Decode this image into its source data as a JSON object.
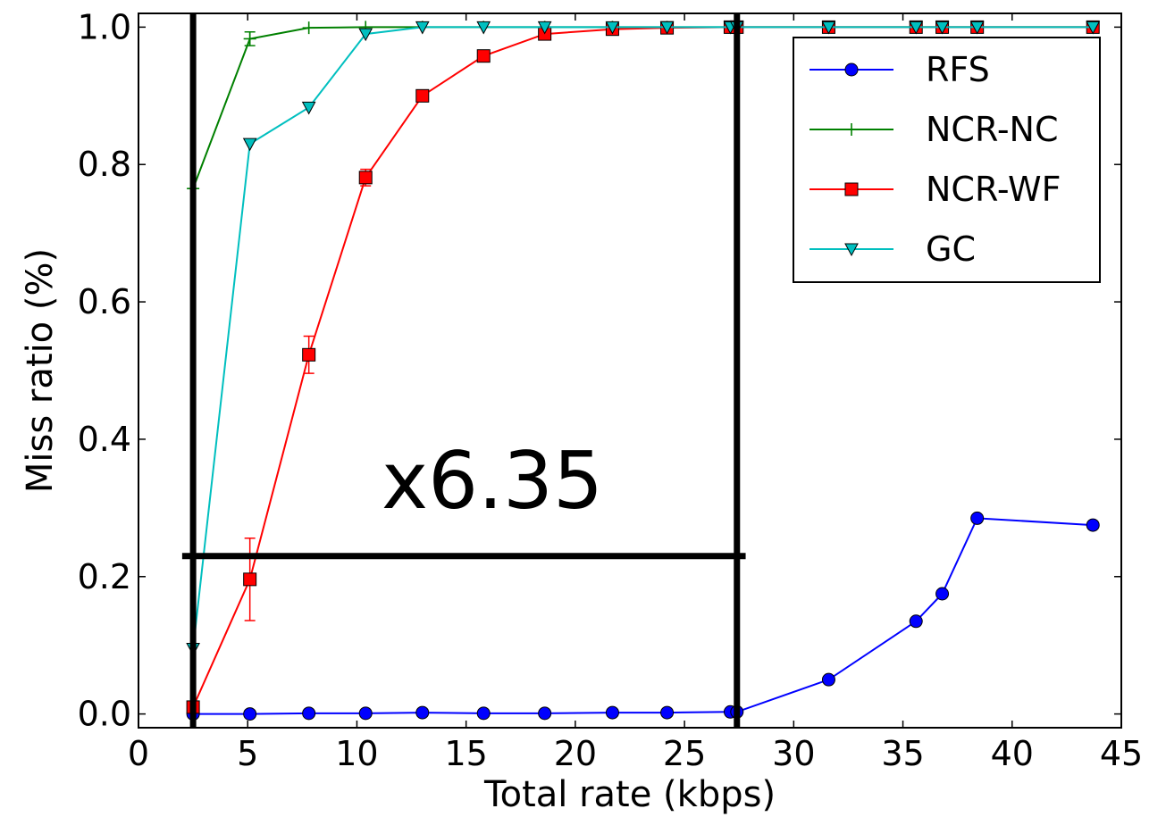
{
  "chart_data": {
    "type": "line",
    "xlabel": "Total rate (kbps)",
    "ylabel": "Miss ratio (%)",
    "xlim": [
      0,
      45
    ],
    "ylim": [
      -0.02,
      1.02
    ],
    "xticks": [
      "0",
      "5",
      "10",
      "15",
      "20",
      "25",
      "30",
      "35",
      "40",
      "45"
    ],
    "yticks": [
      "0.0",
      "0.2",
      "0.4",
      "0.6",
      "0.8",
      "1.0"
    ],
    "legend_position": "top-right",
    "annotation": {
      "text": "x6.35",
      "h_line": {
        "y": 0.23,
        "x_from": 2.0,
        "x_to": 27.8
      },
      "v_lines": [
        2.5,
        27.4
      ]
    },
    "series": [
      {
        "name": "RFS",
        "color": "#0000ff",
        "marker": "circle",
        "x": [
          2.5,
          5.1,
          7.8,
          10.4,
          13.0,
          15.8,
          18.6,
          21.7,
          24.2,
          27.1,
          27.4,
          31.6,
          35.6,
          36.8,
          38.4,
          43.7
        ],
        "y": [
          0.0,
          0.0,
          0.001,
          0.001,
          0.002,
          0.001,
          0.001,
          0.002,
          0.002,
          0.003,
          0.003,
          0.05,
          0.135,
          0.175,
          0.285,
          0.275
        ]
      },
      {
        "name": "NCR-NC",
        "color": "#008000",
        "marker": "plus",
        "x": [
          2.5,
          5.1,
          7.8,
          10.4,
          13.0,
          15.8,
          18.6,
          21.7,
          24.2,
          27.1,
          27.4,
          31.6,
          35.6,
          36.8,
          38.4,
          43.7
        ],
        "y": [
          0.765,
          0.983,
          0.999,
          1.0,
          1.0,
          1.0,
          1.0,
          1.0,
          1.0,
          1.0,
          1.0,
          1.0,
          1.0,
          1.0,
          1.0,
          1.0
        ],
        "err": [
          0,
          0.01,
          0,
          0,
          0,
          0,
          0,
          0,
          0,
          0,
          0,
          0,
          0,
          0,
          0,
          0
        ]
      },
      {
        "name": "NCR-WF",
        "color": "#ff0000",
        "marker": "square",
        "x": [
          2.5,
          5.1,
          7.8,
          10.4,
          13.0,
          15.8,
          18.6,
          21.7,
          24.2,
          27.1,
          27.4,
          31.6,
          35.6,
          36.8,
          38.4,
          43.7
        ],
        "y": [
          0.01,
          0.196,
          0.523,
          0.781,
          0.9,
          0.958,
          0.99,
          0.997,
          0.999,
          1.0,
          1.0,
          1.0,
          1.0,
          1.0,
          1.0,
          1.0
        ],
        "err": [
          0,
          0.06,
          0.027,
          0.012,
          0,
          0,
          0,
          0,
          0,
          0,
          0,
          0,
          0,
          0,
          0,
          0
        ]
      },
      {
        "name": "GC",
        "color": "#00bfbf",
        "marker": "triangle-down",
        "x": [
          2.5,
          5.1,
          7.8,
          10.4,
          13.0,
          15.8,
          18.6,
          21.7,
          24.2,
          27.1,
          27.4,
          31.6,
          35.6,
          36.8,
          38.4,
          43.7
        ],
        "y": [
          0.095,
          0.83,
          0.883,
          0.99,
          1.0,
          1.0,
          1.0,
          1.0,
          1.0,
          1.0,
          1.0,
          1.0,
          1.0,
          1.0,
          1.0,
          1.0
        ]
      }
    ]
  }
}
